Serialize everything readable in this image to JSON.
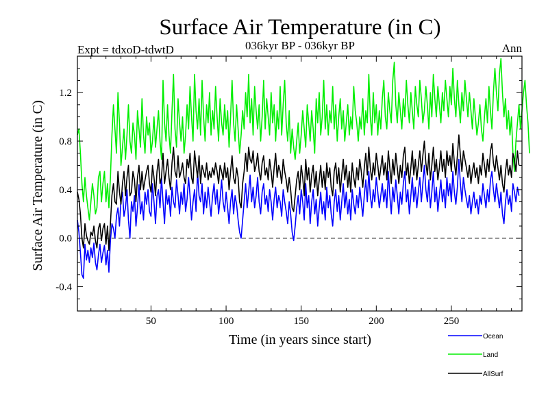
{
  "chart_data": {
    "type": "line",
    "title": "Surface Air Temperature (in C)",
    "subtitle_left": "Expt = tdxoD-tdwtD",
    "subtitle_center": "036kyr BP - 036kyr BP",
    "subtitle_right": "Ann",
    "xlabel": "Time (in years since start)",
    "ylabel": "Surface Air Temperature (in C)",
    "xlim": [
      1,
      297
    ],
    "ylim": [
      -0.6,
      1.5
    ],
    "x_ticks": [
      50,
      100,
      150,
      200,
      250
    ],
    "x_tick_labels": [
      "50",
      "100",
      "150",
      "200",
      "250"
    ],
    "y_ticks": [
      -0.4,
      0.0,
      0.4,
      0.8,
      1.2
    ],
    "y_tick_labels": [
      "-0.4",
      "0.0",
      "0.4",
      "0.8",
      "1.2"
    ],
    "zero_line": "dashed",
    "grid": false,
    "legend_position": "bottom-right",
    "series": [
      {
        "name": "Ocean",
        "color": "#0000ff",
        "x_start": 1,
        "values": [
          0.15,
          0.05,
          -0.12,
          -0.3,
          -0.33,
          -0.05,
          -0.18,
          -0.1,
          -0.2,
          -0.08,
          -0.16,
          -0.04,
          -0.2,
          -0.26,
          -0.14,
          -0.05,
          -0.2,
          -0.12,
          -0.06,
          -0.22,
          -0.1,
          -0.28,
          -0.02,
          0.12,
          0.08,
          0.0,
          0.18,
          0.25,
          0.1,
          0.32,
          0.38,
          0.18,
          0.25,
          0.4,
          0.15,
          0.0,
          0.3,
          0.22,
          0.35,
          0.1,
          0.25,
          0.44,
          0.2,
          0.3,
          0.15,
          0.38,
          0.28,
          0.4,
          0.22,
          0.18,
          0.45,
          0.3,
          0.12,
          0.35,
          0.4,
          0.25,
          0.5,
          0.3,
          0.12,
          0.4,
          0.28,
          0.35,
          0.18,
          0.42,
          0.3,
          0.25,
          0.48,
          0.35,
          0.2,
          0.38,
          0.28,
          0.45,
          0.22,
          0.32,
          0.5,
          0.35,
          0.15,
          0.3,
          0.4,
          0.22,
          0.55,
          0.35,
          0.3,
          0.45,
          0.2,
          0.38,
          0.25,
          0.42,
          0.3,
          0.18,
          0.35,
          0.45,
          0.28,
          0.4,
          0.2,
          0.32,
          0.48,
          0.3,
          0.22,
          0.38,
          0.25,
          0.12,
          0.3,
          0.4,
          0.2,
          0.35,
          0.28,
          0.15,
          0.05,
          0.0,
          0.15,
          0.3,
          0.45,
          0.25,
          0.38,
          0.52,
          0.3,
          0.42,
          0.25,
          0.35,
          0.5,
          0.3,
          0.2,
          0.38,
          0.45,
          0.28,
          0.35,
          0.22,
          0.4,
          0.3,
          0.15,
          0.32,
          0.42,
          0.25,
          0.35,
          0.3,
          0.18,
          0.4,
          0.3,
          0.22,
          0.12,
          0.3,
          0.2,
          0.05,
          -0.02,
          0.1,
          0.25,
          0.35,
          0.2,
          0.4,
          0.3,
          0.15,
          0.45,
          0.25,
          0.35,
          0.12,
          0.3,
          0.4,
          0.2,
          0.32,
          0.1,
          0.25,
          0.38,
          0.2,
          0.3,
          0.15,
          0.42,
          0.25,
          0.35,
          0.2,
          0.1,
          0.3,
          0.4,
          0.22,
          0.35,
          0.15,
          0.3,
          0.45,
          0.25,
          0.38,
          0.2,
          0.32,
          0.15,
          0.4,
          0.28,
          0.2,
          0.35,
          0.25,
          0.42,
          0.3,
          0.18,
          0.35,
          0.48,
          0.3,
          0.55,
          0.35,
          0.25,
          0.4,
          0.3,
          0.5,
          0.38,
          0.25,
          0.35,
          0.45,
          0.3,
          0.4,
          0.25,
          0.55,
          0.35,
          0.2,
          0.42,
          0.3,
          0.48,
          0.35,
          0.2,
          0.38,
          0.28,
          0.45,
          0.55,
          0.3,
          0.4,
          0.2,
          0.35,
          0.5,
          0.3,
          0.42,
          0.25,
          0.38,
          0.5,
          0.3,
          0.45,
          0.6,
          0.4,
          0.3,
          0.48,
          0.25,
          0.38,
          0.55,
          0.3,
          0.42,
          0.22,
          0.35,
          0.48,
          0.3,
          0.4,
          0.25,
          0.5,
          0.35,
          0.45,
          0.3,
          0.55,
          0.38,
          0.28,
          0.42,
          0.65,
          0.45,
          0.3,
          0.5,
          0.4,
          0.32,
          0.25,
          0.35,
          0.2,
          0.3,
          0.38,
          0.25,
          0.32,
          0.2,
          0.35,
          0.28,
          0.45,
          0.35,
          0.25,
          0.4,
          0.3,
          0.48,
          0.55,
          0.4,
          0.3,
          0.45,
          0.35,
          0.25,
          0.38,
          0.2,
          0.12,
          0.3,
          0.4,
          0.28,
          0.35,
          0.22,
          0.45,
          0.38,
          0.3,
          0.42,
          0.35
        ]
      },
      {
        "name": "Land",
        "color": "#00ee00",
        "x_start": 1,
        "values": [
          0.85,
          0.9,
          0.7,
          0.45,
          0.3,
          0.5,
          0.35,
          0.25,
          0.15,
          0.3,
          0.45,
          0.35,
          0.2,
          0.25,
          0.5,
          0.55,
          0.3,
          0.45,
          0.55,
          0.3,
          0.45,
          0.25,
          0.5,
          0.85,
          1.1,
          0.9,
          0.7,
          1.2,
          0.95,
          0.6,
          0.75,
          0.9,
          0.65,
          0.85,
          1.1,
          0.8,
          0.7,
          0.95,
          0.85,
          0.65,
          1.05,
          0.9,
          0.75,
          1.15,
          0.85,
          0.7,
          1.0,
          0.85,
          0.95,
          0.7,
          0.8,
          1.0,
          0.75,
          0.9,
          1.05,
          0.8,
          0.65,
          1.3,
          0.95,
          0.8,
          1.1,
          0.85,
          0.7,
          1.05,
          1.35,
          0.9,
          0.75,
          1.15,
          0.95,
          0.8,
          1.0,
          0.7,
          0.85,
          1.1,
          0.9,
          1.25,
          1.0,
          0.8,
          1.35,
          1.05,
          0.9,
          1.15,
          0.85,
          1.3,
          1.0,
          0.8,
          1.1,
          0.95,
          1.2,
          0.85,
          1.05,
          0.9,
          1.25,
          1.0,
          0.8,
          1.15,
          0.95,
          0.85,
          1.1,
          0.9,
          1.05,
          0.75,
          1.0,
          1.3,
          0.95,
          0.8,
          1.1,
          0.9,
          0.7,
          0.85,
          1.05,
          0.9,
          1.2,
          1.0,
          1.35,
          0.95,
          1.15,
          0.85,
          1.25,
          1.05,
          0.9,
          1.1,
          0.8,
          1.0,
          1.3,
          0.9,
          1.15,
          1.0,
          0.85,
          1.2,
          0.95,
          1.1,
          0.8,
          1.05,
          0.9,
          1.25,
          0.85,
          1.1,
          1.3,
          0.95,
          0.8,
          1.05,
          0.7,
          0.9,
          0.75,
          0.65,
          0.8,
          0.95,
          0.7,
          0.85,
          1.05,
          0.9,
          0.75,
          1.1,
          0.95,
          0.8,
          1.05,
          0.9,
          0.7,
          1.15,
          0.95,
          1.2,
          0.85,
          1.0,
          1.3,
          0.9,
          1.1,
          0.85,
          1.05,
          0.95,
          1.25,
          0.9,
          1.1,
          0.8,
          1.0,
          1.15,
          0.9,
          1.05,
          0.8,
          0.95,
          1.1,
          0.85,
          1.0,
          0.9,
          1.25,
          1.05,
          0.95,
          0.8,
          1.0,
          0.9,
          1.15,
          0.85,
          1.05,
          0.95,
          1.35,
          1.0,
          0.85,
          1.2,
          0.95,
          1.1,
          0.85,
          1.05,
          0.9,
          1.15,
          1.3,
          1.0,
          0.9,
          1.2,
          1.05,
          0.95,
          1.3,
          1.45,
          1.1,
          0.95,
          1.2,
          1.05,
          0.9,
          1.15,
          1.0,
          1.3,
          1.1,
          0.95,
          1.2,
          1.05,
          0.9,
          1.25,
          1.1,
          1.0,
          1.3,
          1.15,
          0.95,
          1.05,
          1.25,
          1.1,
          0.9,
          1.2,
          1.0,
          1.35,
          1.15,
          1.0,
          1.25,
          1.1,
          0.95,
          1.2,
          1.05,
          1.3,
          1.15,
          1.0,
          1.25,
          1.1,
          1.4,
          1.15,
          1.0,
          1.3,
          1.1,
          0.95,
          1.2,
          1.05,
          1.3,
          1.15,
          1.0,
          1.2,
          1.05,
          0.9,
          1.15,
          1.0,
          0.85,
          0.95,
          1.1,
          0.9,
          0.8,
          1.0,
          1.15,
          0.95,
          1.25,
          1.05,
          0.9,
          1.2,
          1.4,
          1.2,
          1.05,
          1.35,
          1.48,
          1.2,
          1.0,
          1.15,
          0.9,
          1.05,
          0.85,
          1.0,
          0.7,
          0.55,
          0.8,
          0.95,
          1.1,
          0.9,
          1.05,
          1.2,
          1.3,
          1.1,
          0.95,
          0.7
        ]
      },
      {
        "name": "AllSurf",
        "color": "#000000",
        "x_start": 1,
        "values": [
          0.38,
          0.32,
          0.2,
          0.0,
          -0.08,
          0.12,
          0.02,
          -0.02,
          -0.05,
          0.05,
          0.02,
          0.1,
          -0.02,
          -0.08,
          0.08,
          0.12,
          -0.02,
          0.08,
          0.12,
          -0.05,
          0.1,
          -0.1,
          0.12,
          0.35,
          0.45,
          0.3,
          0.28,
          0.55,
          0.38,
          0.28,
          0.45,
          0.55,
          0.35,
          0.5,
          0.6,
          0.35,
          0.38,
          0.55,
          0.48,
          0.3,
          0.5,
          0.6,
          0.4,
          0.55,
          0.4,
          0.48,
          0.55,
          0.6,
          0.45,
          0.38,
          0.6,
          0.5,
          0.35,
          0.55,
          0.65,
          0.45,
          0.5,
          0.7,
          0.45,
          0.55,
          0.65,
          0.5,
          0.4,
          0.62,
          0.75,
          0.55,
          0.5,
          0.68,
          0.5,
          0.55,
          0.62,
          0.5,
          0.45,
          0.65,
          0.58,
          0.7,
          0.5,
          0.45,
          0.72,
          0.6,
          0.5,
          0.68,
          0.45,
          0.6,
          0.55,
          0.5,
          0.62,
          0.48,
          0.55,
          0.5,
          0.58,
          0.52,
          0.62,
          0.55,
          0.45,
          0.6,
          0.55,
          0.48,
          0.62,
          0.5,
          0.58,
          0.4,
          0.55,
          0.68,
          0.5,
          0.45,
          0.58,
          0.5,
          0.3,
          0.25,
          0.45,
          0.55,
          0.7,
          0.55,
          0.75,
          0.65,
          0.62,
          0.72,
          0.55,
          0.6,
          0.7,
          0.55,
          0.48,
          0.62,
          0.68,
          0.52,
          0.58,
          0.48,
          0.65,
          0.55,
          0.42,
          0.58,
          0.7,
          0.5,
          0.6,
          0.55,
          0.45,
          0.65,
          0.55,
          0.48,
          0.38,
          0.5,
          0.4,
          0.25,
          0.22,
          0.35,
          0.48,
          0.55,
          0.4,
          0.6,
          0.5,
          0.35,
          0.65,
          0.48,
          0.58,
          0.38,
          0.52,
          0.6,
          0.42,
          0.55,
          0.35,
          0.48,
          0.6,
          0.42,
          0.55,
          0.4,
          0.62,
          0.5,
          0.58,
          0.42,
          0.35,
          0.55,
          0.62,
          0.45,
          0.58,
          0.38,
          0.52,
          0.65,
          0.48,
          0.6,
          0.42,
          0.55,
          0.38,
          0.62,
          0.5,
          0.42,
          0.58,
          0.48,
          0.65,
          0.55,
          0.42,
          0.58,
          0.7,
          0.52,
          0.75,
          0.58,
          0.48,
          0.62,
          0.52,
          0.7,
          0.6,
          0.48,
          0.58,
          0.68,
          0.52,
          0.62,
          0.48,
          0.72,
          0.58,
          0.45,
          0.65,
          0.52,
          0.7,
          0.58,
          0.45,
          0.6,
          0.5,
          0.68,
          0.75,
          0.52,
          0.62,
          0.45,
          0.58,
          0.72,
          0.52,
          0.65,
          0.48,
          0.6,
          0.72,
          0.55,
          0.68,
          0.8,
          0.62,
          0.52,
          0.7,
          0.48,
          0.6,
          0.75,
          0.55,
          0.65,
          0.48,
          0.58,
          0.72,
          0.55,
          0.65,
          0.5,
          0.72,
          0.6,
          0.68,
          0.55,
          0.78,
          0.62,
          0.52,
          0.68,
          0.85,
          0.68,
          0.55,
          0.72,
          0.65,
          0.58,
          0.5,
          0.6,
          0.45,
          0.55,
          0.62,
          0.5,
          0.58,
          0.45,
          0.6,
          0.52,
          0.7,
          0.6,
          0.5,
          0.65,
          0.55,
          0.72,
          0.78,
          0.62,
          0.55,
          0.68,
          0.58,
          0.48,
          0.6,
          0.45,
          0.38,
          0.55,
          0.65,
          0.52,
          0.6,
          0.5,
          0.7,
          0.65,
          0.55,
          0.72,
          0.6
        ]
      }
    ]
  }
}
